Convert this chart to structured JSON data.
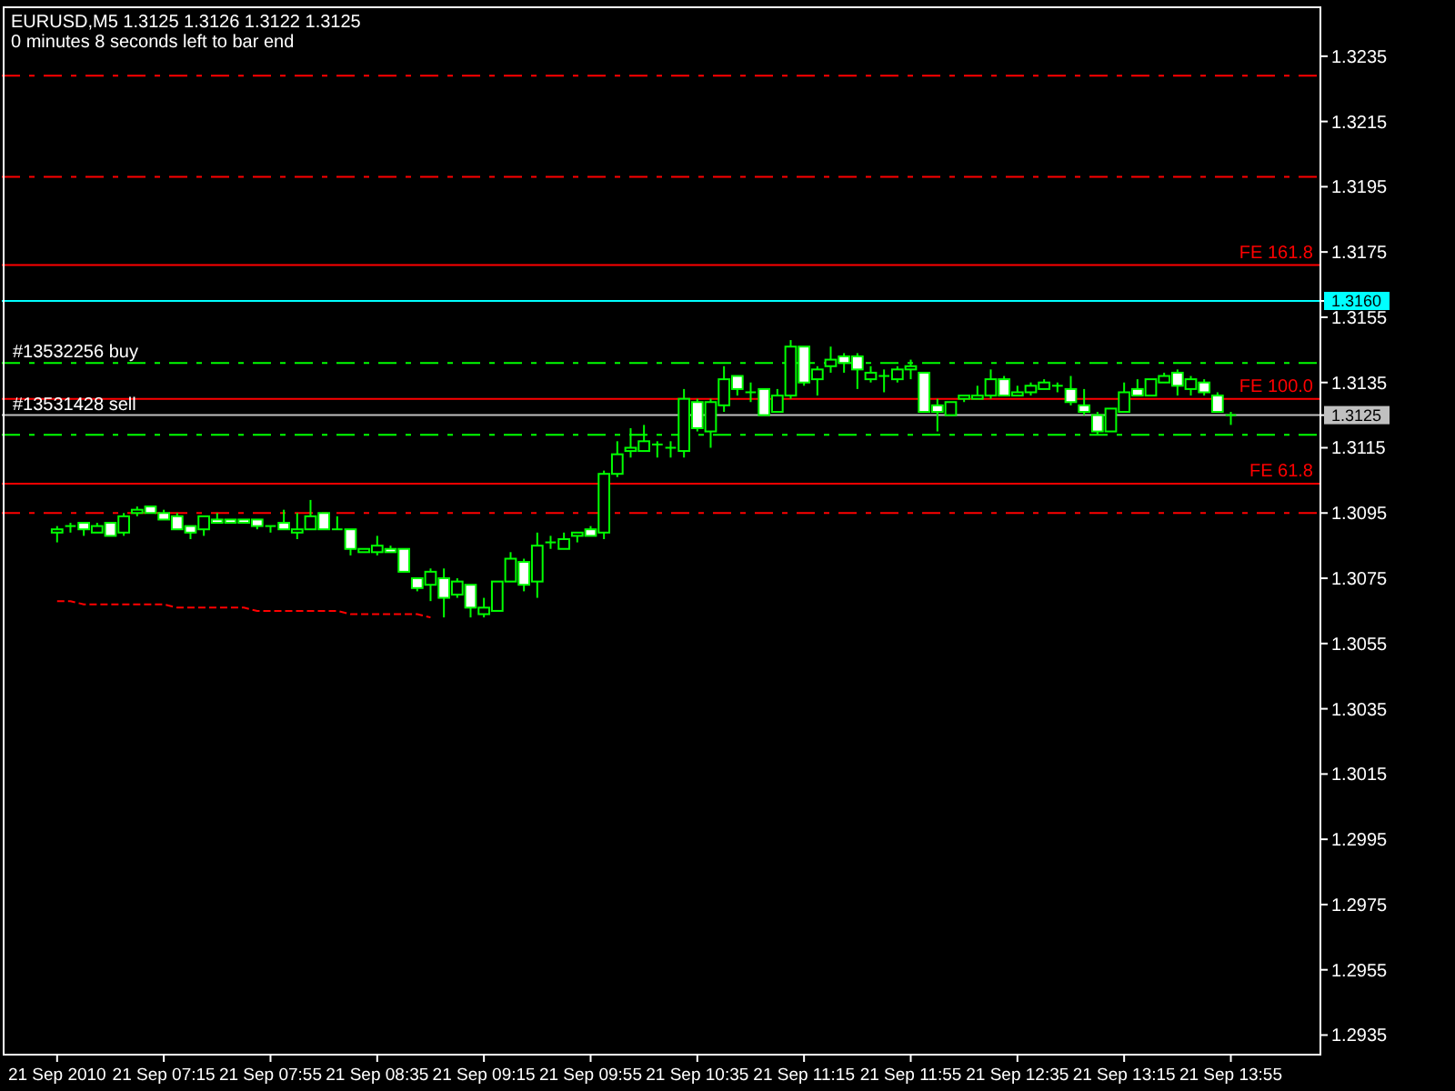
{
  "chart_data": {
    "type": "candlestick",
    "title": "EURUSD,M5  1.3125 1.3126 1.3122 1.3125",
    "subtitle": "0 minutes 8 seconds left to bar end",
    "categories": [
      "21 Sep 2010",
      null,
      null,
      null,
      null,
      null,
      null,
      null,
      "21 Sep 07:15",
      null,
      null,
      null,
      null,
      null,
      null,
      null,
      "21 Sep 07:55",
      null,
      null,
      null,
      null,
      null,
      null,
      null,
      "21 Sep 08:35",
      null,
      null,
      null,
      null,
      null,
      null,
      null,
      "21 Sep 09:15",
      null,
      null,
      null,
      null,
      null,
      null,
      null,
      "21 Sep 09:55",
      null,
      null,
      null,
      null,
      null,
      null,
      null,
      "21 Sep 10:35",
      null,
      null,
      null,
      null,
      null,
      null,
      null,
      "21 Sep 11:15",
      null,
      null,
      null,
      null,
      null,
      null,
      null,
      "21 Sep 11:55",
      null,
      null,
      null,
      null,
      null,
      null,
      null,
      "21 Sep 12:35",
      null,
      null,
      null,
      null,
      null,
      null,
      null,
      "21 Sep 13:15",
      null,
      null,
      null,
      null,
      null,
      null,
      null,
      "21 Sep 13:55"
    ],
    "series": [
      {
        "type": "candlestick",
        "color": "#00ff00",
        "ohlc": [
          [
            1.3089,
            1.3091,
            1.3086,
            1.309
          ],
          [
            1.3091,
            1.3092,
            1.3089,
            1.3091
          ],
          [
            1.3092,
            1.3092,
            1.3088,
            1.309
          ],
          [
            1.3089,
            1.3092,
            1.3089,
            1.3091
          ],
          [
            1.3092,
            1.3092,
            1.3088,
            1.3088
          ],
          [
            1.3089,
            1.3095,
            1.3088,
            1.3094
          ],
          [
            1.3095,
            1.3097,
            1.3094,
            1.3096
          ],
          [
            1.3097,
            1.3097,
            1.3095,
            1.3095
          ],
          [
            1.3095,
            1.3096,
            1.3093,
            1.3093
          ],
          [
            1.3094,
            1.3095,
            1.309,
            1.309
          ],
          [
            1.3091,
            1.3091,
            1.3087,
            1.3089
          ],
          [
            1.309,
            1.3094,
            1.3088,
            1.3094
          ],
          [
            1.3093,
            1.3095,
            1.3092,
            1.3092
          ],
          [
            1.3093,
            1.3093,
            1.3092,
            1.3092
          ],
          [
            1.3093,
            1.3093,
            1.3092,
            1.3092
          ],
          [
            1.3093,
            1.3093,
            1.309,
            1.3091
          ],
          [
            1.3091,
            1.3091,
            1.3089,
            1.3091
          ],
          [
            1.3092,
            1.3096,
            1.309,
            1.309
          ],
          [
            1.3089,
            1.3095,
            1.3087,
            1.309
          ],
          [
            1.309,
            1.3099,
            1.309,
            1.3094
          ],
          [
            1.3095,
            1.3095,
            1.309,
            1.309
          ],
          [
            1.309,
            1.3094,
            1.309,
            1.309
          ],
          [
            1.309,
            1.309,
            1.3082,
            1.3084
          ],
          [
            1.3083,
            1.3084,
            1.3083,
            1.3084
          ],
          [
            1.3083,
            1.3088,
            1.3082,
            1.3085
          ],
          [
            1.3084,
            1.3085,
            1.3083,
            1.3083
          ],
          [
            1.3084,
            1.3084,
            1.3077,
            1.3077
          ],
          [
            1.3075,
            1.3075,
            1.3071,
            1.3072
          ],
          [
            1.3073,
            1.3078,
            1.3068,
            1.3077
          ],
          [
            1.3075,
            1.3078,
            1.3063,
            1.3069
          ],
          [
            1.307,
            1.3075,
            1.3069,
            1.3074
          ],
          [
            1.3073,
            1.3073,
            1.3063,
            1.3066
          ],
          [
            1.3064,
            1.3069,
            1.3063,
            1.3066
          ],
          [
            1.3065,
            1.3074,
            1.3065,
            1.3074
          ],
          [
            1.3074,
            1.3083,
            1.3074,
            1.3081
          ],
          [
            1.308,
            1.3081,
            1.3071,
            1.3073
          ],
          [
            1.3074,
            1.3089,
            1.3069,
            1.3085
          ],
          [
            1.3086,
            1.3088,
            1.3084,
            1.3086
          ],
          [
            1.3084,
            1.3089,
            1.3084,
            1.3087
          ],
          [
            1.3088,
            1.3089,
            1.3086,
            1.3089
          ],
          [
            1.309,
            1.3091,
            1.3088,
            1.3088
          ],
          [
            1.3089,
            1.3108,
            1.3087,
            1.3107
          ],
          [
            1.3107,
            1.3117,
            1.3106,
            1.3113
          ],
          [
            1.3114,
            1.3121,
            1.3112,
            1.3115
          ],
          [
            1.3114,
            1.3122,
            1.3114,
            1.3117
          ],
          [
            1.3116,
            1.3117,
            1.3112,
            1.3116
          ],
          [
            1.3115,
            1.3117,
            1.3112,
            1.3115
          ],
          [
            1.3114,
            1.3133,
            1.3112,
            1.313
          ],
          [
            1.3129,
            1.313,
            1.312,
            1.3121
          ],
          [
            1.312,
            1.313,
            1.3115,
            1.3129
          ],
          [
            1.3128,
            1.314,
            1.3126,
            1.3136
          ],
          [
            1.3137,
            1.3137,
            1.3131,
            1.3133
          ],
          [
            1.3132,
            1.3135,
            1.3129,
            1.3132
          ],
          [
            1.3133,
            1.3133,
            1.3125,
            1.3125
          ],
          [
            1.3126,
            1.3133,
            1.3126,
            1.3131
          ],
          [
            1.3131,
            1.3148,
            1.313,
            1.3146
          ],
          [
            1.3146,
            1.3146,
            1.3134,
            1.3135
          ],
          [
            1.3136,
            1.314,
            1.3131,
            1.3139
          ],
          [
            1.314,
            1.3146,
            1.3138,
            1.3142
          ],
          [
            1.3143,
            1.3144,
            1.3138,
            1.3141
          ],
          [
            1.3143,
            1.3144,
            1.3133,
            1.3139
          ],
          [
            1.3136,
            1.314,
            1.3135,
            1.3138
          ],
          [
            1.3137,
            1.3139,
            1.3132,
            1.3137
          ],
          [
            1.3136,
            1.314,
            1.3135,
            1.3139
          ],
          [
            1.3139,
            1.3142,
            1.3136,
            1.314
          ],
          [
            1.3138,
            1.3138,
            1.3126,
            1.3126
          ],
          [
            1.3128,
            1.313,
            1.312,
            1.3126
          ],
          [
            1.3125,
            1.3129,
            1.3125,
            1.3129
          ],
          [
            1.313,
            1.3131,
            1.3129,
            1.3131
          ],
          [
            1.313,
            1.3134,
            1.313,
            1.3131
          ],
          [
            1.3131,
            1.3139,
            1.313,
            1.3136
          ],
          [
            1.3136,
            1.3137,
            1.3131,
            1.3131
          ],
          [
            1.3131,
            1.3134,
            1.3131,
            1.3132
          ],
          [
            1.3132,
            1.3135,
            1.3131,
            1.3134
          ],
          [
            1.3133,
            1.3136,
            1.3133,
            1.3135
          ],
          [
            1.3134,
            1.3135,
            1.3132,
            1.3134
          ],
          [
            1.3133,
            1.3137,
            1.3128,
            1.3129
          ],
          [
            1.3128,
            1.3133,
            1.3125,
            1.3126
          ],
          [
            1.3125,
            1.3126,
            1.3119,
            1.312
          ],
          [
            1.312,
            1.3127,
            1.312,
            1.3127
          ],
          [
            1.3126,
            1.3135,
            1.3126,
            1.3132
          ],
          [
            1.3133,
            1.3136,
            1.3131,
            1.3131
          ],
          [
            1.3131,
            1.3136,
            1.3131,
            1.3136
          ],
          [
            1.3135,
            1.3138,
            1.3135,
            1.3137
          ],
          [
            1.3138,
            1.3139,
            1.3131,
            1.3134
          ],
          [
            1.3133,
            1.3137,
            1.3131,
            1.3136
          ],
          [
            1.3135,
            1.3136,
            1.3131,
            1.3132
          ],
          [
            1.3131,
            1.3132,
            1.3126,
            1.3126
          ],
          [
            1.3125,
            1.3126,
            1.3122,
            1.3125
          ]
        ]
      },
      {
        "type": "line",
        "color": "#ff0000",
        "line_style": "dashed",
        "values": [
          1.3068,
          1.3068,
          1.3067,
          1.3067,
          1.3067,
          1.3067,
          1.3067,
          1.3067,
          1.3067,
          1.3066,
          1.3066,
          1.3066,
          1.3066,
          1.3066,
          1.3066,
          1.3065,
          1.3065,
          1.3065,
          1.3065,
          1.3065,
          1.3065,
          1.3065,
          1.3064,
          1.3064,
          1.3064,
          1.3064,
          1.3064,
          1.3064,
          1.3063,
          null,
          null,
          null,
          null,
          null,
          null,
          null,
          null,
          null,
          null,
          null,
          null,
          null,
          null,
          null,
          null,
          null,
          null,
          null,
          null,
          null,
          null,
          null,
          null,
          null,
          null,
          null,
          null,
          null,
          null,
          null,
          null,
          null,
          null,
          null,
          null,
          null,
          null,
          null,
          null,
          null,
          null,
          null,
          null,
          null,
          null,
          null,
          null,
          null,
          null,
          null,
          null,
          null,
          null,
          null,
          null,
          null,
          null,
          null,
          null
        ]
      }
    ],
    "ylim": [
      1.2929,
      1.325
    ],
    "yticks": [
      1.2935,
      1.2955,
      1.2975,
      1.2995,
      1.3015,
      1.3035,
      1.3055,
      1.3075,
      1.3095,
      1.3115,
      {
        "value": 1.3125,
        "label": "1.3125"
      },
      1.3135,
      1.3155,
      {
        "value": 1.316,
        "label": "1.3160"
      },
      1.3175,
      1.3195,
      1.3215,
      1.3235
    ],
    "ref_lines": [
      {
        "axis": "y",
        "value": 1.3229,
        "color": "#ff0000",
        "line_style": "dashed"
      },
      {
        "axis": "y",
        "value": 1.3198,
        "color": "#ff0000",
        "line_style": "dashed"
      },
      {
        "axis": "y",
        "value": 1.3171,
        "color": "#ff0000",
        "line_style": "solid",
        "label": "FE 161.8"
      },
      {
        "axis": "y",
        "value": 1.316,
        "color": "#00ffff",
        "line_style": "solid"
      },
      {
        "axis": "y",
        "value": 1.3141,
        "color": "#00ff00",
        "line_style": "dashed",
        "label": "#13532256 buy"
      },
      {
        "axis": "y",
        "value": 1.313,
        "color": "#ff0000",
        "line_style": "solid",
        "label": "FE 100.0"
      },
      {
        "axis": "y",
        "value": 1.3125,
        "color": "#c0c0c0",
        "line_style": "solid",
        "label": "#13531428 sell"
      },
      {
        "axis": "y",
        "value": 1.3119,
        "color": "#00ff00",
        "line_style": "dashed"
      },
      {
        "axis": "y",
        "value": 1.3104,
        "color": "#ff0000",
        "line_style": "solid",
        "label": "FE 61.8"
      },
      {
        "axis": "y",
        "value": 1.3095,
        "color": "#ff0000",
        "line_style": "dashed"
      }
    ]
  }
}
